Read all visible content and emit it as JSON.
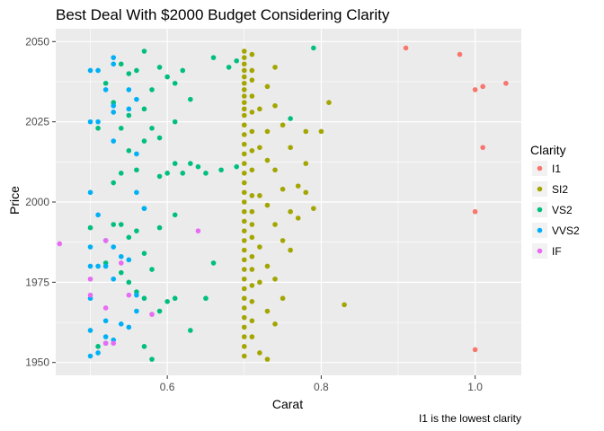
{
  "chart_data": {
    "type": "scatter",
    "title": "Best Deal With $2000 Budget Considering Clarity",
    "xlabel": "Carat",
    "ylabel": "Price",
    "caption": "I1 is the lowest clarity",
    "xlim": [
      0.455,
      1.06
    ],
    "ylim": [
      1946,
      2054
    ],
    "x_ticks": [
      0.6,
      0.8,
      1.0
    ],
    "x_tick_labels": [
      "0.6",
      "0.8",
      "1.0"
    ],
    "y_ticks": [
      1950,
      1975,
      2000,
      2025,
      2050
    ],
    "y_tick_labels": [
      "1950",
      "1975",
      "2000",
      "2025",
      "2050"
    ],
    "grid": true,
    "panel_color": "#EBEBEB",
    "legend": {
      "title": "Clarity",
      "position": "right",
      "entries": [
        "I1",
        "SI2",
        "VS2",
        "VVS2",
        "IF"
      ]
    },
    "series": [
      {
        "name": "I1",
        "color": "#F8766D",
        "points": [
          [
            0.91,
            2048
          ],
          [
            0.98,
            2046
          ],
          [
            1.0,
            2035
          ],
          [
            1.01,
            2036
          ],
          [
            1.04,
            2037
          ],
          [
            1.01,
            2017
          ],
          [
            1.0,
            1997
          ],
          [
            1.0,
            1954
          ]
        ]
      },
      {
        "name": "SI2",
        "color": "#A3A500",
        "points": [
          [
            0.7,
            2047
          ],
          [
            0.7,
            2045
          ],
          [
            0.7,
            2043
          ],
          [
            0.7,
            2041
          ],
          [
            0.7,
            2039
          ],
          [
            0.7,
            2037
          ],
          [
            0.7,
            2035
          ],
          [
            0.7,
            2033
          ],
          [
            0.7,
            2031
          ],
          [
            0.7,
            2029
          ],
          [
            0.7,
            2027
          ],
          [
            0.7,
            2024
          ],
          [
            0.7,
            2021
          ],
          [
            0.7,
            2018
          ],
          [
            0.7,
            2015
          ],
          [
            0.7,
            2012
          ],
          [
            0.7,
            2009
          ],
          [
            0.7,
            2006
          ],
          [
            0.7,
            2003
          ],
          [
            0.7,
            2000
          ],
          [
            0.7,
            1997
          ],
          [
            0.7,
            1994
          ],
          [
            0.7,
            1991
          ],
          [
            0.7,
            1988
          ],
          [
            0.7,
            1985
          ],
          [
            0.7,
            1982
          ],
          [
            0.7,
            1979
          ],
          [
            0.7,
            1976
          ],
          [
            0.7,
            1973
          ],
          [
            0.7,
            1970
          ],
          [
            0.7,
            1967
          ],
          [
            0.7,
            1964
          ],
          [
            0.7,
            1961
          ],
          [
            0.7,
            1958
          ],
          [
            0.7,
            1955
          ],
          [
            0.7,
            1952
          ],
          [
            0.71,
            2046
          ],
          [
            0.71,
            2041
          ],
          [
            0.71,
            2038
          ],
          [
            0.71,
            2033
          ],
          [
            0.71,
            2028
          ],
          [
            0.71,
            2022
          ],
          [
            0.71,
            2016
          ],
          [
            0.71,
            2010
          ],
          [
            0.71,
            2002
          ],
          [
            0.71,
            1997
          ],
          [
            0.71,
            1993
          ],
          [
            0.71,
            1989
          ],
          [
            0.71,
            1983
          ],
          [
            0.71,
            1979
          ],
          [
            0.71,
            1974
          ],
          [
            0.71,
            1969
          ],
          [
            0.71,
            1963
          ],
          [
            0.71,
            1958
          ],
          [
            0.72,
            2029
          ],
          [
            0.72,
            2017
          ],
          [
            0.72,
            2002
          ],
          [
            0.72,
            1986
          ],
          [
            0.72,
            1975
          ],
          [
            0.72,
            1953
          ],
          [
            0.73,
            2036
          ],
          [
            0.73,
            2022
          ],
          [
            0.73,
            2013
          ],
          [
            0.73,
            1999
          ],
          [
            0.73,
            1980
          ],
          [
            0.73,
            1966
          ],
          [
            0.73,
            1951
          ],
          [
            0.74,
            2042
          ],
          [
            0.74,
            2030
          ],
          [
            0.74,
            2010
          ],
          [
            0.74,
            1993
          ],
          [
            0.74,
            1976
          ],
          [
            0.74,
            1962
          ],
          [
            0.75,
            2024
          ],
          [
            0.75,
            2004
          ],
          [
            0.75,
            1988
          ],
          [
            0.75,
            1970
          ],
          [
            0.76,
            2017
          ],
          [
            0.76,
            1997
          ],
          [
            0.76,
            1985
          ],
          [
            0.77,
            2005
          ],
          [
            0.77,
            1995
          ],
          [
            0.78,
            2022
          ],
          [
            0.78,
            2012
          ],
          [
            0.78,
            2003
          ],
          [
            0.79,
            1998
          ],
          [
            0.8,
            2022
          ],
          [
            0.81,
            2031
          ],
          [
            0.83,
            1968
          ]
        ]
      },
      {
        "name": "VS2",
        "color": "#00BF7D",
        "points": [
          [
            0.5,
            1992
          ],
          [
            0.51,
            2023
          ],
          [
            0.51,
            1955
          ],
          [
            0.52,
            2037
          ],
          [
            0.52,
            1981
          ],
          [
            0.53,
            2031
          ],
          [
            0.53,
            2006
          ],
          [
            0.53,
            1993
          ],
          [
            0.54,
            2043
          ],
          [
            0.54,
            2023
          ],
          [
            0.54,
            2009
          ],
          [
            0.54,
            1993
          ],
          [
            0.54,
            1978
          ],
          [
            0.55,
            2040
          ],
          [
            0.55,
            2027
          ],
          [
            0.55,
            2016
          ],
          [
            0.55,
            1989
          ],
          [
            0.55,
            1975
          ],
          [
            0.56,
            2041
          ],
          [
            0.56,
            2010
          ],
          [
            0.56,
            1991
          ],
          [
            0.56,
            1972
          ],
          [
            0.57,
            2047
          ],
          [
            0.57,
            2029
          ],
          [
            0.57,
            2019
          ],
          [
            0.57,
            1998
          ],
          [
            0.57,
            1984
          ],
          [
            0.57,
            1970
          ],
          [
            0.57,
            1955
          ],
          [
            0.58,
            2035
          ],
          [
            0.58,
            2023
          ],
          [
            0.58,
            1979
          ],
          [
            0.58,
            1951
          ],
          [
            0.59,
            2042
          ],
          [
            0.59,
            2020
          ],
          [
            0.59,
            2008
          ],
          [
            0.59,
            1992
          ],
          [
            0.59,
            1966
          ],
          [
            0.6,
            2039
          ],
          [
            0.6,
            2009
          ],
          [
            0.6,
            1969
          ],
          [
            0.61,
            2037
          ],
          [
            0.61,
            2025
          ],
          [
            0.61,
            2012
          ],
          [
            0.61,
            1996
          ],
          [
            0.61,
            1970
          ],
          [
            0.62,
            2041
          ],
          [
            0.62,
            2009
          ],
          [
            0.63,
            2032
          ],
          [
            0.63,
            2012
          ],
          [
            0.63,
            1960
          ],
          [
            0.64,
            2011
          ],
          [
            0.65,
            2009
          ],
          [
            0.65,
            1970
          ],
          [
            0.66,
            2045
          ],
          [
            0.66,
            1981
          ],
          [
            0.67,
            2010
          ],
          [
            0.68,
            2042
          ],
          [
            0.69,
            2044
          ],
          [
            0.69,
            2011
          ],
          [
            0.76,
            2026
          ],
          [
            0.79,
            2048
          ]
        ]
      },
      {
        "name": "VVS2",
        "color": "#00B0F6",
        "points": [
          [
            0.5,
            2041
          ],
          [
            0.5,
            2025
          ],
          [
            0.5,
            2003
          ],
          [
            0.5,
            1986
          ],
          [
            0.5,
            1980
          ],
          [
            0.5,
            1970
          ],
          [
            0.5,
            1960
          ],
          [
            0.5,
            1952
          ],
          [
            0.51,
            2041
          ],
          [
            0.51,
            2025
          ],
          [
            0.51,
            1996
          ],
          [
            0.51,
            1980
          ],
          [
            0.51,
            1953
          ],
          [
            0.52,
            2035
          ],
          [
            0.52,
            1988
          ],
          [
            0.52,
            1980
          ],
          [
            0.52,
            1963
          ],
          [
            0.52,
            1958
          ],
          [
            0.52,
            1956
          ],
          [
            0.53,
            2045
          ],
          [
            0.53,
            2043
          ],
          [
            0.53,
            2030
          ],
          [
            0.53,
            2028
          ],
          [
            0.53,
            2019
          ],
          [
            0.53,
            1986
          ],
          [
            0.53,
            1976
          ],
          [
            0.53,
            1957
          ],
          [
            0.54,
            1983
          ],
          [
            0.54,
            1962
          ],
          [
            0.55,
            2035
          ],
          [
            0.55,
            2029
          ],
          [
            0.55,
            1982
          ],
          [
            0.55,
            1961
          ],
          [
            0.56,
            2032
          ],
          [
            0.56,
            2015
          ],
          [
            0.56,
            2003
          ],
          [
            0.56,
            1971
          ],
          [
            0.56,
            1966
          ],
          [
            0.57,
            1998
          ]
        ]
      },
      {
        "name": "IF",
        "color": "#E76BF3",
        "points": [
          [
            0.46,
            1987
          ],
          [
            0.5,
            1976
          ],
          [
            0.5,
            1971
          ],
          [
            0.52,
            1988
          ],
          [
            0.52,
            1967
          ],
          [
            0.52,
            1956
          ],
          [
            0.53,
            1956
          ],
          [
            0.54,
            1981
          ],
          [
            0.55,
            1971
          ],
          [
            0.58,
            1965
          ],
          [
            0.64,
            1991
          ]
        ]
      }
    ]
  }
}
